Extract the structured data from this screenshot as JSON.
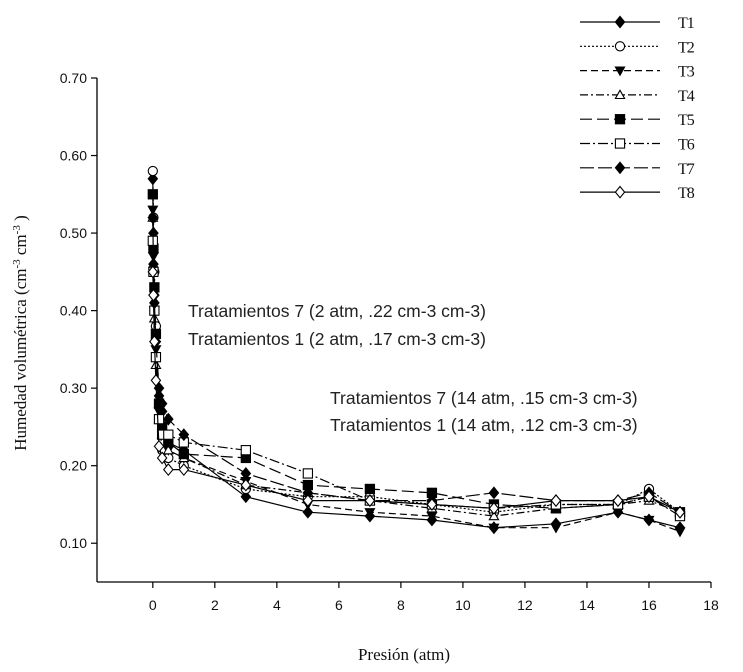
{
  "chart_data": {
    "type": "line",
    "xlabel": "Presión (atm)",
    "ylabel": "Humedad volumétrica (cm-3 cm-3 )",
    "ylabel_parts": {
      "main": "Humedad volumétrica (cm",
      "sup1": "-3",
      "mid": " cm",
      "sup2": "-3",
      "end": " )"
    },
    "xlim": [
      -1.8,
      18
    ],
    "ylim": [
      0.05,
      0.7
    ],
    "xticks": [
      0,
      2,
      4,
      6,
      8,
      10,
      12,
      14,
      16,
      18
    ],
    "yticks": [
      0.1,
      0.2,
      0.3,
      0.4,
      0.5,
      0.6,
      0.7
    ],
    "xtick_labels": [
      "0",
      "2",
      "4",
      "6",
      "8",
      "10",
      "12",
      "14",
      "16",
      "18"
    ],
    "ytick_labels": [
      "0.10",
      "0.20",
      "0.30",
      "0.40",
      "0.50",
      "0.60",
      "0.70"
    ],
    "grid": false,
    "legend_position": "top-right",
    "annotations": [
      "Tratamientos 7 (2 atm, .22 cm-3 cm-3)",
      "Tratamientos 1 (2 atm, .17 cm-3 cm-3)",
      "Tratamientos 7 (14 atm, .15 cm-3 cm-3)",
      "Tratamientos 1 (14 atm, .12 cm-3 cm-3)"
    ],
    "x": [
      0,
      0.02,
      0.05,
      0.1,
      0.2,
      0.3,
      0.5,
      1,
      3,
      5,
      7,
      9,
      11,
      13,
      15,
      16,
      17
    ],
    "series": [
      {
        "name": "T1",
        "marker": "diamond-filled",
        "dash": "",
        "values": [
          0.57,
          0.5,
          0.42,
          0.38,
          0.29,
          0.27,
          0.23,
          0.22,
          0.16,
          0.14,
          0.135,
          0.13,
          0.12,
          0.125,
          0.14,
          0.13,
          0.12
        ]
      },
      {
        "name": "T2",
        "marker": "circle-open",
        "dash": "2,2",
        "values": [
          0.58,
          0.52,
          0.45,
          0.38,
          0.26,
          0.22,
          0.21,
          0.2,
          0.17,
          0.16,
          0.16,
          0.15,
          0.14,
          0.15,
          0.15,
          0.17,
          0.14
        ]
      },
      {
        "name": "T3",
        "marker": "triangle-down-filled",
        "dash": "7,4",
        "values": [
          0.53,
          0.47,
          0.4,
          0.35,
          0.27,
          0.25,
          0.22,
          0.21,
          0.18,
          0.15,
          0.14,
          0.135,
          0.12,
          0.12,
          0.14,
          0.13,
          0.115
        ]
      },
      {
        "name": "T4",
        "marker": "triangle-up-open",
        "dash": "8,3,2,3",
        "values": [
          0.52,
          0.46,
          0.39,
          0.33,
          0.26,
          0.24,
          0.22,
          0.21,
          0.175,
          0.165,
          0.155,
          0.145,
          0.135,
          0.145,
          0.15,
          0.155,
          0.14
        ]
      },
      {
        "name": "T5",
        "marker": "square-filled",
        "dash": "12,5",
        "values": [
          0.55,
          0.48,
          0.43,
          0.37,
          0.28,
          0.25,
          0.23,
          0.215,
          0.21,
          0.175,
          0.17,
          0.165,
          0.15,
          0.145,
          0.15,
          0.16,
          0.14
        ]
      },
      {
        "name": "T6",
        "marker": "square-open",
        "dash": "10,3,2,3",
        "values": [
          0.49,
          0.45,
          0.4,
          0.34,
          0.26,
          0.24,
          0.24,
          0.23,
          0.22,
          0.19,
          0.155,
          0.15,
          0.145,
          0.15,
          0.15,
          0.16,
          0.135
        ]
      },
      {
        "name": "T7",
        "marker": "diamond-filled",
        "dash": "14,4",
        "values": [
          0.52,
          0.46,
          0.41,
          0.36,
          0.3,
          0.28,
          0.26,
          0.24,
          0.19,
          0.165,
          0.155,
          0.155,
          0.165,
          0.155,
          0.155,
          0.165,
          0.14
        ]
      },
      {
        "name": "T8",
        "marker": "diamond-open",
        "dash": "",
        "values": [
          0.45,
          0.42,
          0.36,
          0.31,
          0.225,
          0.21,
          0.195,
          0.195,
          0.175,
          0.155,
          0.155,
          0.15,
          0.145,
          0.155,
          0.155,
          0.16,
          0.14
        ]
      }
    ]
  }
}
